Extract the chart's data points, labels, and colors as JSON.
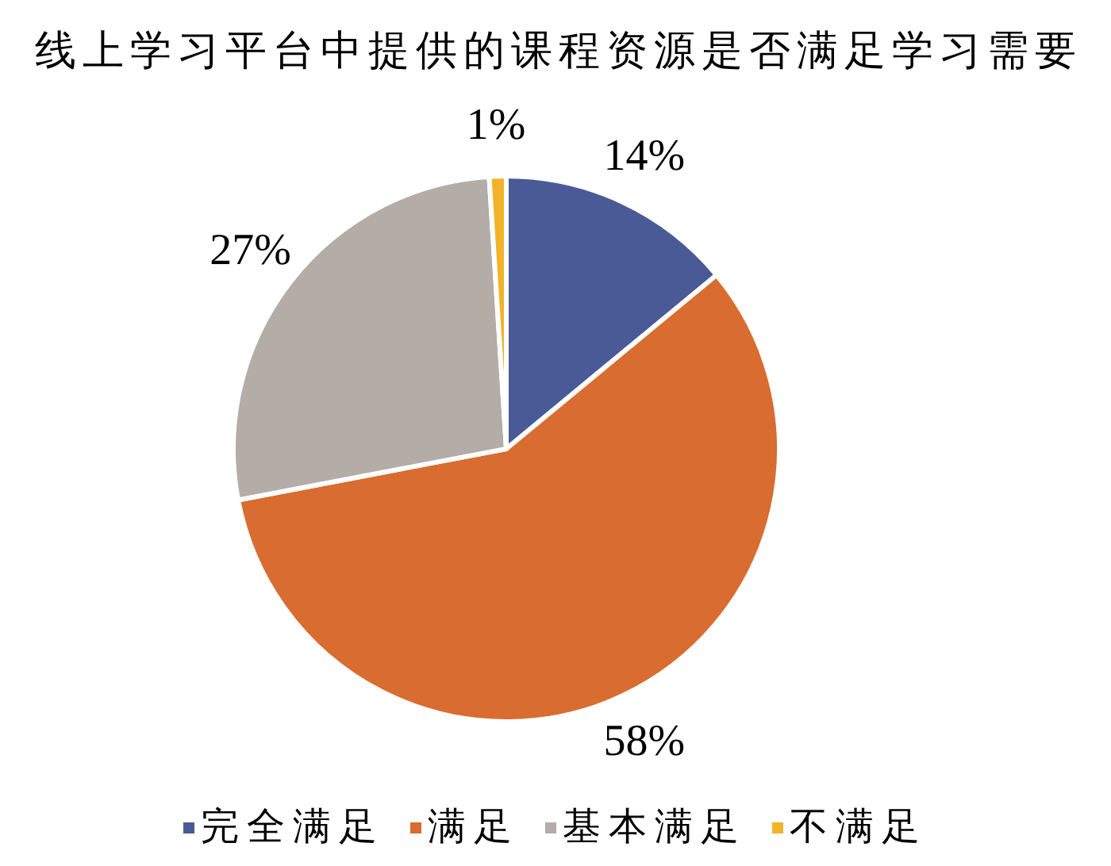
{
  "chart_data": {
    "type": "pie",
    "title": "线上学习平台中提供的课程资源是否满足学习需要",
    "categories": [
      "完全满足",
      "满足",
      "基本满足",
      "不满足"
    ],
    "values": [
      14,
      58,
      27,
      1
    ],
    "colors": [
      "#4a5a97",
      "#d96c30",
      "#b3aca7",
      "#f2b32a"
    ],
    "value_labels": [
      "14%",
      "58%",
      "27%",
      "1%"
    ],
    "legend": "bottom"
  }
}
